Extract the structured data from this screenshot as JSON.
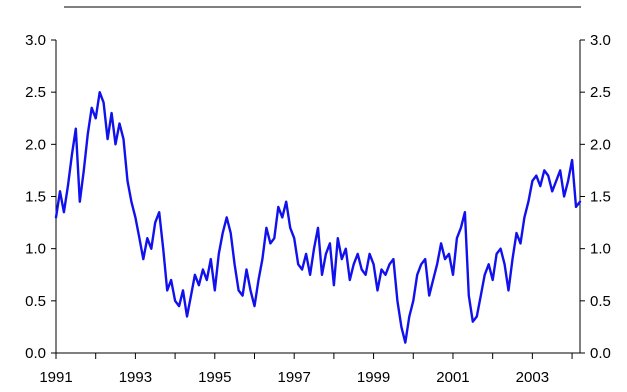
{
  "chart_data": {
    "type": "line",
    "title": "",
    "xlabel": "",
    "ylabel": "",
    "ylim": [
      0,
      3
    ],
    "xlim": [
      1991,
      2004.2
    ],
    "yticks": [
      0.0,
      0.5,
      1.0,
      1.5,
      2.0,
      2.5,
      3.0
    ],
    "ytick_labels": [
      "0.0",
      "0.5",
      "1.0",
      "1.5",
      "2.0",
      "2.5",
      "3.0"
    ],
    "xticks": [
      1991,
      1993,
      1995,
      1997,
      1999,
      2001,
      2003
    ],
    "xtick_labels": [
      "1991",
      "1993",
      "1995",
      "1997",
      "1999",
      "2001",
      "2003"
    ],
    "grid": false,
    "legend": "none",
    "line_color": "#1111ee",
    "series": [
      {
        "x": [
          1991.0,
          1991.1,
          1991.2,
          1991.3,
          1991.4,
          1991.5,
          1991.6,
          1991.7,
          1991.8,
          1991.9,
          1992.0,
          1992.1,
          1992.2,
          1992.3,
          1992.4,
          1992.5,
          1992.6,
          1992.7,
          1992.8,
          1992.9,
          1993.0,
          1993.1,
          1993.2,
          1993.3,
          1993.4,
          1993.5,
          1993.6,
          1993.7,
          1993.8,
          1993.9,
          1994.0,
          1994.1,
          1994.2,
          1994.3,
          1994.4,
          1994.5,
          1994.6,
          1994.7,
          1994.8,
          1994.9,
          1995.0,
          1995.1,
          1995.2,
          1995.3,
          1995.4,
          1995.5,
          1995.6,
          1995.7,
          1995.8,
          1995.9,
          1996.0,
          1996.1,
          1996.2,
          1996.3,
          1996.4,
          1996.5,
          1996.6,
          1996.7,
          1996.8,
          1996.9,
          1997.0,
          1997.1,
          1997.2,
          1997.3,
          1997.4,
          1997.5,
          1997.6,
          1997.7,
          1997.8,
          1997.9,
          1998.0,
          1998.1,
          1998.2,
          1998.3,
          1998.4,
          1998.5,
          1998.6,
          1998.7,
          1998.8,
          1998.9,
          1999.0,
          1999.1,
          1999.2,
          1999.3,
          1999.4,
          1999.5,
          1999.6,
          1999.7,
          1999.8,
          1999.9,
          2000.0,
          2000.1,
          2000.2,
          2000.3,
          2000.4,
          2000.5,
          2000.6,
          2000.7,
          2000.8,
          2000.9,
          2001.0,
          2001.1,
          2001.2,
          2001.3,
          2001.4,
          2001.5,
          2001.6,
          2001.7,
          2001.8,
          2001.9,
          2002.0,
          2002.1,
          2002.2,
          2002.3,
          2002.4,
          2002.5,
          2002.6,
          2002.7,
          2002.8,
          2002.9,
          2003.0,
          2003.1,
          2003.2,
          2003.3,
          2003.4,
          2003.5,
          2003.6,
          2003.7,
          2003.8,
          2003.9,
          2004.0,
          2004.1,
          2004.2
        ],
        "values": [
          1.3,
          1.55,
          1.35,
          1.6,
          1.9,
          2.15,
          1.45,
          1.75,
          2.1,
          2.35,
          2.25,
          2.5,
          2.4,
          2.05,
          2.3,
          2.0,
          2.2,
          2.05,
          1.65,
          1.45,
          1.3,
          1.1,
          0.9,
          1.1,
          1.0,
          1.25,
          1.35,
          1.0,
          0.6,
          0.7,
          0.5,
          0.45,
          0.6,
          0.35,
          0.55,
          0.75,
          0.65,
          0.8,
          0.7,
          0.9,
          0.6,
          0.95,
          1.15,
          1.3,
          1.15,
          0.85,
          0.6,
          0.55,
          0.8,
          0.6,
          0.45,
          0.7,
          0.9,
          1.2,
          1.05,
          1.1,
          1.4,
          1.3,
          1.45,
          1.2,
          1.1,
          0.85,
          0.8,
          0.95,
          0.75,
          1.0,
          1.2,
          0.75,
          0.95,
          1.05,
          0.65,
          1.1,
          0.9,
          1.0,
          0.7,
          0.85,
          0.95,
          0.8,
          0.75,
          0.95,
          0.85,
          0.6,
          0.8,
          0.75,
          0.85,
          0.9,
          0.5,
          0.25,
          0.1,
          0.35,
          0.5,
          0.75,
          0.85,
          0.9,
          0.55,
          0.7,
          0.85,
          1.05,
          0.9,
          0.95,
          0.75,
          1.1,
          1.2,
          1.35,
          0.55,
          0.3,
          0.35,
          0.55,
          0.75,
          0.85,
          0.7,
          0.95,
          1.0,
          0.85,
          0.6,
          0.9,
          1.15,
          1.05,
          1.3,
          1.45,
          1.65,
          1.7,
          1.6,
          1.75,
          1.7,
          1.55,
          1.65,
          1.75,
          1.5,
          1.65,
          1.85,
          1.4,
          1.45
        ]
      }
    ]
  }
}
